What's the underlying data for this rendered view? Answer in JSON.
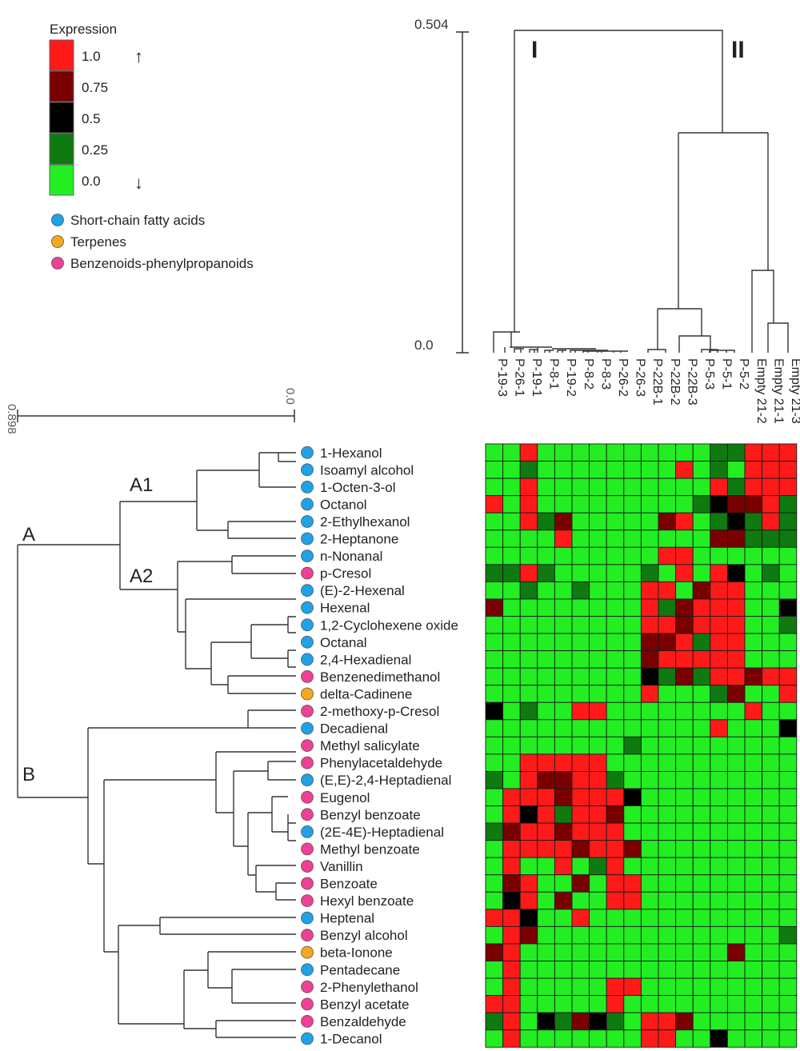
{
  "legend": {
    "title": "Expression",
    "scale": [
      {
        "label": "1.0",
        "color": "#ff1a1a"
      },
      {
        "label": "0.75",
        "color": "#7a0000"
      },
      {
        "label": "0.5",
        "color": "#000000"
      },
      {
        "label": "0.25",
        "color": "#0f7a0f"
      },
      {
        "label": "0.0",
        "color": "#22ee22"
      }
    ],
    "arrow_up": "↑",
    "arrow_down": "↓",
    "categories": [
      {
        "name": "Short-chain fatty acids",
        "color": "#1fa2e6"
      },
      {
        "name": "Terpenes",
        "color": "#f5a81c"
      },
      {
        "name": "Benzenoids-phenylpropanoids",
        "color": "#ef3f96"
      }
    ]
  },
  "top_dendrogram": {
    "axis_max": "0.504",
    "axis_min": "0.0",
    "cluster_labels": [
      "I",
      "II"
    ]
  },
  "left_dendrogram": {
    "axis_max": "0.898",
    "axis_min": "0.0",
    "cluster_labels": [
      "A",
      "A1",
      "A2",
      "B"
    ]
  },
  "chart_data": {
    "type": "heatmap",
    "title": "Expression",
    "value_range": [
      0.0,
      1.0
    ],
    "columns": [
      "P-19-3",
      "P-26-1",
      "P-19-1",
      "P-8-1",
      "P-19-2",
      "P-8-2",
      "P-8-3",
      "P-26-2",
      "P-26-3",
      "P-22B-1",
      "P-22B-2",
      "P-22B-3",
      "P-5-3",
      "P-5-1",
      "P-5-2",
      "Empty 21-2",
      "Empty 21-1",
      "Empty 21-3"
    ],
    "rows": [
      {
        "name": "1-Hexanol",
        "category": "Short-chain fatty acids"
      },
      {
        "name": "Isoamyl alcohol",
        "category": "Short-chain fatty acids"
      },
      {
        "name": "1-Octen-3-ol",
        "category": "Short-chain fatty acids"
      },
      {
        "name": "Octanol",
        "category": "Short-chain fatty acids"
      },
      {
        "name": "2-Ethylhexanol",
        "category": "Short-chain fatty acids"
      },
      {
        "name": "2-Heptanone",
        "category": "Short-chain fatty acids"
      },
      {
        "name": "n-Nonanal",
        "category": "Short-chain fatty acids"
      },
      {
        "name": "p-Cresol",
        "category": "Benzenoids-phenylpropanoids"
      },
      {
        "name": "(E)-2-Hexenal",
        "category": "Short-chain fatty acids"
      },
      {
        "name": "Hexenal",
        "category": "Short-chain fatty acids"
      },
      {
        "name": "1,2-Cyclohexene oxide",
        "category": "Short-chain fatty acids"
      },
      {
        "name": "Octanal",
        "category": "Short-chain fatty acids"
      },
      {
        "name": "2,4-Hexadienal",
        "category": "Short-chain fatty acids"
      },
      {
        "name": "Benzenedimethanol",
        "category": "Benzenoids-phenylpropanoids"
      },
      {
        "name": "delta-Cadinene",
        "category": "Terpenes"
      },
      {
        "name": "2-methoxy-p-Cresol",
        "category": "Benzenoids-phenylpropanoids"
      },
      {
        "name": "Decadienal",
        "category": "Short-chain fatty acids"
      },
      {
        "name": "Methyl salicylate",
        "category": "Benzenoids-phenylpropanoids"
      },
      {
        "name": "Phenylacetaldehyde",
        "category": "Benzenoids-phenylpropanoids"
      },
      {
        "name": "(E,E)-2,4-Heptadienal",
        "category": "Short-chain fatty acids"
      },
      {
        "name": "Eugenol",
        "category": "Benzenoids-phenylpropanoids"
      },
      {
        "name": "Benzyl benzoate",
        "category": "Benzenoids-phenylpropanoids"
      },
      {
        "name": "(2E-4E)-Heptadienal",
        "category": "Short-chain fatty acids"
      },
      {
        "name": "Methyl benzoate",
        "category": "Benzenoids-phenylpropanoids"
      },
      {
        "name": "Vanillin",
        "category": "Benzenoids-phenylpropanoids"
      },
      {
        "name": "Benzoate",
        "category": "Benzenoids-phenylpropanoids"
      },
      {
        "name": "Hexyl benzoate",
        "category": "Benzenoids-phenylpropanoids"
      },
      {
        "name": "Heptenal",
        "category": "Short-chain fatty acids"
      },
      {
        "name": "Benzyl alcohol",
        "category": "Benzenoids-phenylpropanoids"
      },
      {
        "name": "beta-Ionone",
        "category": "Terpenes"
      },
      {
        "name": "Pentadecane",
        "category": "Short-chain fatty acids"
      },
      {
        "name": "2-Phenylethanol",
        "category": "Benzenoids-phenylpropanoids"
      },
      {
        "name": "Benzyl acetate",
        "category": "Benzenoids-phenylpropanoids"
      },
      {
        "name": "Benzaldehyde",
        "category": "Benzenoids-phenylpropanoids"
      },
      {
        "name": "1-Decanol",
        "category": "Short-chain fatty acids"
      }
    ],
    "values": [
      [
        0,
        0,
        1,
        0,
        0,
        0,
        0,
        0,
        0,
        0,
        0,
        0,
        0,
        0.25,
        0.25,
        1,
        1,
        1
      ],
      [
        0,
        0,
        0.25,
        0,
        0,
        0,
        0,
        0,
        0,
        0,
        0,
        1,
        0,
        0.25,
        0,
        1,
        1,
        1
      ],
      [
        0,
        0,
        1,
        0,
        0,
        0,
        0,
        0,
        0,
        0,
        0,
        0,
        0,
        1,
        0.25,
        1,
        1,
        1
      ],
      [
        1,
        0,
        1,
        0,
        0,
        0,
        0,
        0,
        0,
        0,
        0,
        0,
        0.25,
        0.5,
        0.75,
        0.75,
        1,
        0.25
      ],
      [
        0,
        0,
        1,
        0.25,
        0.75,
        0,
        0,
        0,
        0,
        0,
        0.75,
        1,
        0,
        0.25,
        0.5,
        0.25,
        1,
        0.25
      ],
      [
        0,
        0,
        0,
        0,
        1,
        0,
        0,
        0,
        0,
        0,
        0,
        0,
        0,
        0.75,
        0.75,
        0.25,
        0.25,
        0.25
      ],
      [
        0,
        0,
        0,
        0,
        0,
        0,
        0,
        0,
        0,
        0,
        1,
        1,
        0,
        0,
        0,
        0,
        0,
        0
      ],
      [
        0.25,
        0.25,
        1,
        0.25,
        0,
        0,
        0,
        0,
        0,
        0.25,
        0,
        1,
        0,
        1,
        0.5,
        0,
        0.25,
        0
      ],
      [
        0,
        0,
        0.25,
        0,
        0,
        0.25,
        0,
        0,
        0,
        1,
        1,
        0,
        0.75,
        1,
        1,
        0,
        0,
        0
      ],
      [
        0.75,
        0,
        0,
        0,
        0,
        0,
        0,
        0,
        0,
        1,
        0.25,
        0.75,
        1,
        1,
        1,
        0,
        0,
        0.5
      ],
      [
        0,
        0,
        0,
        0,
        0,
        0,
        0,
        0,
        0,
        1,
        1,
        0.75,
        1,
        1,
        1,
        0,
        0,
        0.25
      ],
      [
        0,
        0,
        0,
        0,
        0,
        0,
        0,
        0,
        0,
        0.75,
        0.75,
        1,
        0.25,
        1,
        1,
        0,
        0,
        0
      ],
      [
        0,
        0,
        0,
        0,
        0,
        0,
        0,
        0,
        0,
        0.75,
        1,
        1,
        1,
        1,
        1,
        0,
        0,
        0
      ],
      [
        0,
        0,
        0,
        0,
        0,
        0,
        0,
        0,
        0,
        0.5,
        0.25,
        0.75,
        0.25,
        1,
        1,
        0.75,
        1,
        1
      ],
      [
        0,
        0,
        0,
        0,
        0,
        0,
        0,
        0,
        0,
        1,
        0,
        0,
        0,
        0.25,
        0.75,
        0,
        0,
        1
      ],
      [
        0.5,
        0,
        0.25,
        0,
        0,
        1,
        1,
        0,
        0,
        0,
        0,
        0,
        0,
        0,
        0,
        1,
        0,
        0
      ],
      [
        0,
        0,
        0,
        0,
        0,
        0,
        0,
        0,
        0,
        0,
        0,
        0,
        0,
        1,
        0,
        0,
        0,
        0.5
      ],
      [
        0,
        0,
        0,
        0,
        0,
        0,
        0,
        0,
        0.25,
        0,
        0,
        0,
        0,
        0,
        0,
        0,
        0,
        0
      ],
      [
        0,
        0,
        1,
        1,
        1,
        1,
        1,
        0,
        0,
        0,
        0,
        0,
        0,
        0,
        0,
        0,
        0,
        0
      ],
      [
        0.25,
        0,
        1,
        0.75,
        0.75,
        1,
        1,
        0.25,
        0,
        0,
        0,
        0,
        0,
        0,
        0,
        0,
        0,
        0
      ],
      [
        0,
        1,
        1,
        1,
        0.75,
        1,
        1,
        1,
        0.5,
        0,
        0,
        0,
        0,
        0,
        0,
        0,
        0,
        0
      ],
      [
        0,
        1,
        0.5,
        1,
        0.25,
        1,
        1,
        0.75,
        0,
        0,
        0,
        0,
        0,
        0,
        0,
        0,
        0,
        0
      ],
      [
        0.25,
        0.75,
        1,
        1,
        0.75,
        1,
        1,
        1,
        0,
        0,
        0,
        0,
        0,
        0,
        0,
        0,
        0,
        0
      ],
      [
        0,
        1,
        1,
        1,
        1,
        0.75,
        1,
        1,
        0.75,
        0,
        0,
        0,
        0,
        0,
        0,
        0,
        0,
        0
      ],
      [
        0,
        1,
        0,
        0,
        1,
        0,
        0.25,
        1,
        0,
        0,
        0,
        0,
        0,
        0,
        0,
        0,
        0,
        0
      ],
      [
        0,
        0.75,
        1,
        0,
        0,
        0.75,
        0,
        1,
        1,
        0,
        0,
        0,
        0,
        0,
        0,
        0,
        0,
        0
      ],
      [
        0,
        0.5,
        1,
        0,
        0.75,
        0,
        0,
        1,
        1,
        0,
        0,
        0,
        0,
        0,
        0,
        0,
        0,
        0
      ],
      [
        1,
        1,
        0.5,
        0,
        0,
        1,
        0,
        0,
        0,
        0,
        0,
        0,
        0,
        0,
        0,
        0,
        0,
        0
      ],
      [
        0,
        1,
        0.75,
        0,
        0,
        0,
        0,
        0,
        0,
        0,
        0,
        0,
        0,
        0,
        0,
        0,
        0,
        0.25
      ],
      [
        0.75,
        1,
        0,
        0,
        0,
        0,
        0,
        0,
        0,
        0,
        0,
        0,
        0,
        0,
        0.75,
        0,
        0,
        0
      ],
      [
        0,
        1,
        0,
        0,
        0,
        0,
        0,
        0,
        0,
        0,
        0,
        0,
        0,
        0,
        0,
        0,
        0,
        0
      ],
      [
        0,
        1,
        0,
        0,
        0,
        0,
        0,
        1,
        1,
        0,
        0,
        0,
        0,
        0,
        0,
        0,
        0,
        0
      ],
      [
        1,
        1,
        0,
        0,
        0,
        0,
        0,
        1,
        0,
        0,
        0,
        0,
        0,
        0,
        0,
        0,
        0,
        0
      ],
      [
        0.25,
        1,
        0,
        0.5,
        0.25,
        0.75,
        0.5,
        0.25,
        0,
        1,
        1,
        0.75,
        0,
        0,
        0,
        0,
        0,
        0
      ],
      [
        0,
        1,
        0,
        0,
        0,
        0,
        0,
        0,
        0,
        1,
        1,
        0,
        0,
        0.5,
        0,
        0,
        0,
        0
      ]
    ]
  }
}
